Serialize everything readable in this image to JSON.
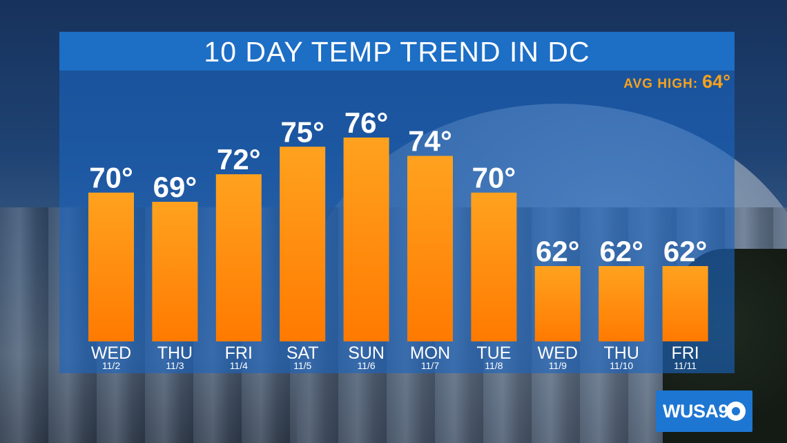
{
  "chart_data": {
    "type": "bar",
    "title": "10 DAY TEMP TREND IN DC",
    "categories": [
      "WED",
      "THU",
      "FRI",
      "SAT",
      "SUN",
      "MON",
      "TUE",
      "WED",
      "THU",
      "FRI"
    ],
    "dates": [
      "11/2",
      "11/3",
      "11/4",
      "11/5",
      "11/6",
      "11/7",
      "11/8",
      "11/9",
      "11/10",
      "11/11"
    ],
    "values": [
      70,
      69,
      72,
      75,
      76,
      74,
      70,
      62,
      62,
      62
    ],
    "value_labels": [
      "70°",
      "69°",
      "72°",
      "75°",
      "76°",
      "74°",
      "70°",
      "62°",
      "62°",
      "62°"
    ],
    "xlabel": "",
    "ylabel": "",
    "ylim": [
      52,
      76
    ],
    "grid": false,
    "bar_color_top": "#ffa21f",
    "bar_color_bottom": "#ff7a00"
  },
  "avg_high": {
    "label": "AVG HIGH:",
    "value": "64°"
  },
  "logo": {
    "text": "WUSA9",
    "icon": "cbs-eye-icon"
  },
  "colors": {
    "panel": "#1c64be",
    "accent": "#f7a21b",
    "text": "#ffffff"
  }
}
